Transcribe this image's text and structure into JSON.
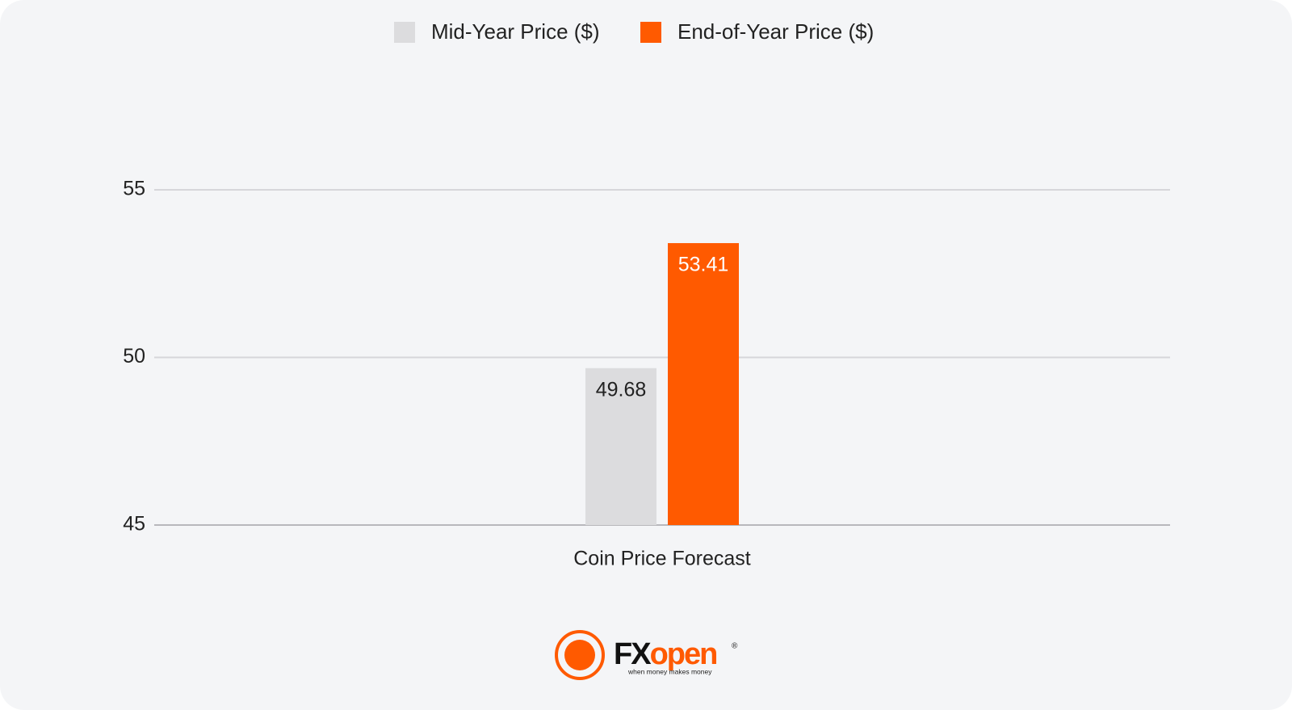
{
  "chart_data": {
    "type": "bar",
    "categories": [
      "Coin Price Forecast"
    ],
    "series": [
      {
        "name": "Mid-Year Price ($)",
        "color": "#dcdcde",
        "values": [
          49.68
        ]
      },
      {
        "name": "End-of-Year Price ($)",
        "color": "#ff5a00",
        "values": [
          53.41
        ]
      }
    ],
    "ylim": [
      45,
      55
    ],
    "yticks": [
      45,
      50,
      55
    ],
    "grid": true,
    "legend": "top"
  },
  "logo": {
    "brand_dark": "FX",
    "brand_accent": "open",
    "mark": "®",
    "tagline": "when money makes money"
  }
}
